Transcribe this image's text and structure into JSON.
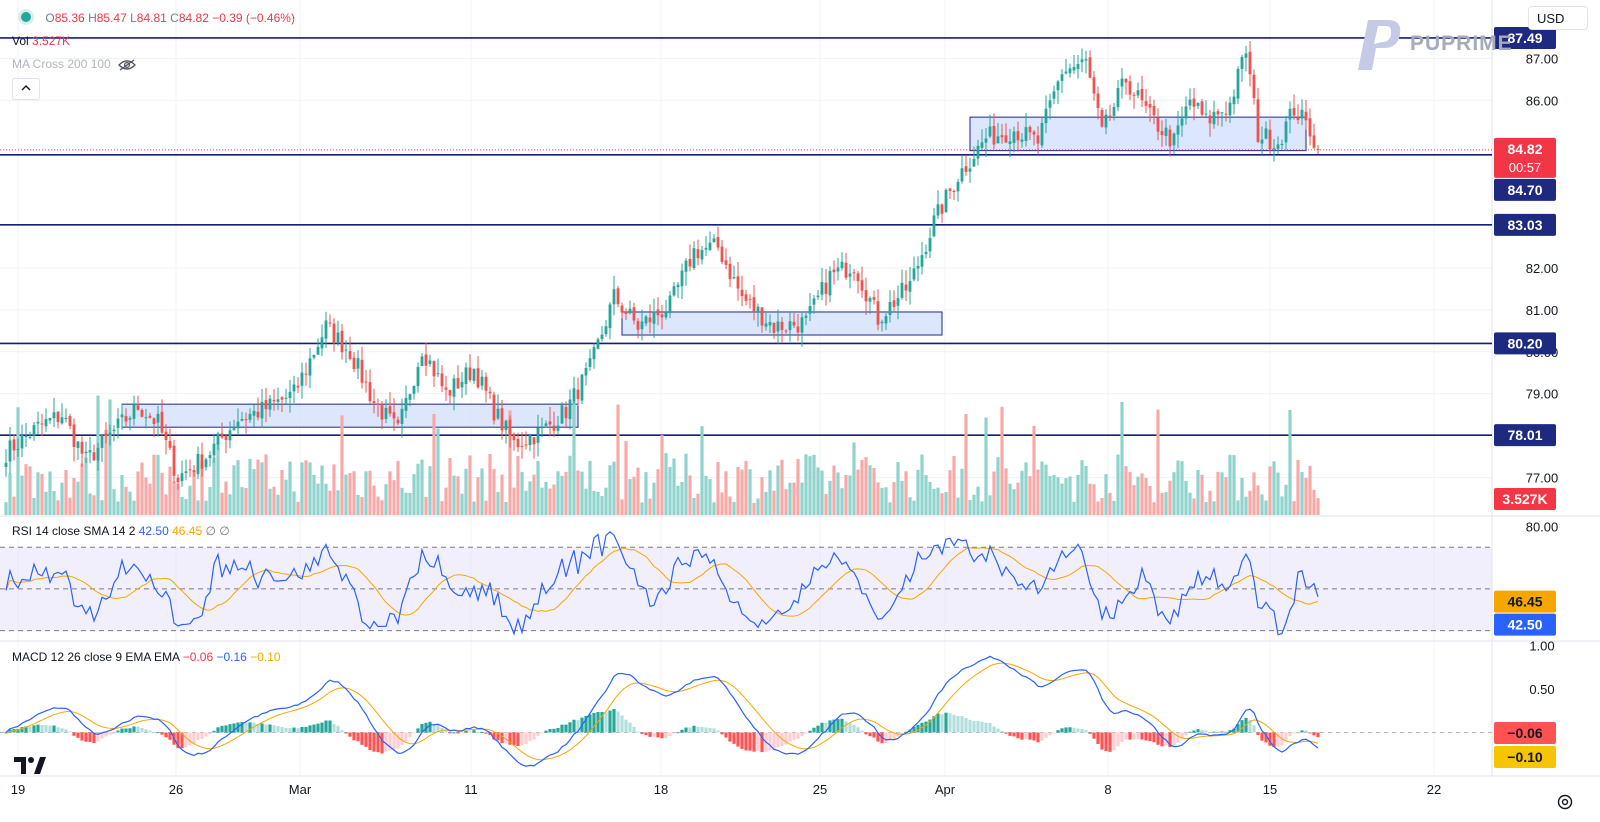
{
  "toolbar": {
    "currency": "USD",
    "collapse_icon": "chevron-up-icon"
  },
  "brand": {
    "name": "PUPRIME",
    "logo_color": "#a6abb9"
  },
  "legend": {
    "status_icon": "market-open-dot-icon",
    "open_label": "O",
    "open": "85.36",
    "high_label": "H",
    "high": "85.47",
    "low_label": "L",
    "low": "84.81",
    "close_label": "C",
    "close": "84.82",
    "change": "−0.39 (−0.46%)",
    "vol_label": "Vol",
    "vol_value": "3.527K",
    "ma_label": "MA Cross 200 100",
    "ma_icon": "eye-off-icon"
  },
  "rsi_legend": {
    "title": "RSI 14 close SMA 14 2",
    "v1": "42.50",
    "v2": "46.45",
    "v3": "∅",
    "v4": "∅"
  },
  "macd_legend": {
    "title": "MACD 12 26 close 9 EMA EMA",
    "v1": "−0.06",
    "v2": "−0.16",
    "v3": "−0.10"
  },
  "colors": {
    "up": "#26a69a",
    "down": "#ef5350",
    "vol_up": "#8fd3cc",
    "vol_down": "#f7a9a8",
    "level_line": "#131d85",
    "zone_fill": "#d6e2fb",
    "zone_border": "#1e2a80",
    "rsi": "#2962ff",
    "rsi_ma": "#f7a600",
    "macd": "#2962ff",
    "signal": "#f7a600",
    "label_bg": "#1e2a80",
    "price_label_bg": "#f23645"
  },
  "chart_data": {
    "type": "candlestick",
    "symbol_currency": "USD",
    "x_ticks": [
      "19",
      "26",
      "Mar",
      "11",
      "18",
      "25",
      "Apr",
      "8",
      "15",
      "22"
    ],
    "y_ticks": [
      "87.00",
      "86.00",
      "82.00",
      "81.00",
      "80.00",
      "79.00",
      "77.00"
    ],
    "price_range": [
      76.2,
      88.3
    ],
    "levels": [
      "87.49",
      "84.70",
      "83.03",
      "80.20",
      "78.01"
    ],
    "level_values": [
      87.49,
      84.7,
      83.03,
      80.2,
      78.01
    ],
    "current_price": "84.82",
    "countdown": "00:57",
    "volume_label": "3.527K",
    "zones": [
      {
        "from_bar": 29,
        "to_bar": 143,
        "low": 78.2,
        "high": 78.75
      },
      {
        "from_bar": 154,
        "to_bar": 234,
        "low": 80.4,
        "high": 80.95
      },
      {
        "from_bar": 241,
        "to_bar": 325,
        "low": 84.8,
        "high": 85.6
      }
    ],
    "rsi_panel": {
      "y_ticks": [
        "80.00"
      ],
      "value_labels": [
        "46.45",
        "42.50"
      ],
      "band": [
        30,
        70
      ],
      "range": [
        25,
        85
      ]
    },
    "macd_panel": {
      "y_ticks": [
        "1.00",
        "0.50"
      ],
      "value_labels": [
        "−0.06",
        "−0.10"
      ],
      "range": [
        -0.5,
        1.05
      ]
    },
    "price_path": [
      [
        0,
        77.6
      ],
      [
        8,
        78.2
      ],
      [
        14,
        78.5
      ],
      [
        20,
        77.4
      ],
      [
        26,
        78.0
      ],
      [
        33,
        78.7
      ],
      [
        38,
        78.3
      ],
      [
        43,
        77.0
      ],
      [
        50,
        77.5
      ],
      [
        58,
        78.4
      ],
      [
        64,
        78.6
      ],
      [
        72,
        79.0
      ],
      [
        80,
        80.6
      ],
      [
        86,
        80.0
      ],
      [
        92,
        78.8
      ],
      [
        98,
        78.1
      ],
      [
        104,
        80.1
      ],
      [
        110,
        79.0
      ],
      [
        117,
        79.6
      ],
      [
        122,
        78.6
      ],
      [
        127,
        77.8
      ],
      [
        134,
        78.1
      ],
      [
        140,
        78.6
      ],
      [
        146,
        79.6
      ],
      [
        152,
        81.3
      ],
      [
        158,
        80.6
      ],
      [
        166,
        81.1
      ],
      [
        172,
        82.4
      ],
      [
        178,
        82.5
      ],
      [
        184,
        81.3
      ],
      [
        192,
        80.6
      ],
      [
        200,
        80.7
      ],
      [
        206,
        81.8
      ],
      [
        212,
        82.1
      ],
      [
        218,
        80.8
      ],
      [
        226,
        81.6
      ],
      [
        232,
        83.1
      ],
      [
        238,
        84.2
      ],
      [
        245,
        85.1
      ],
      [
        252,
        85.3
      ],
      [
        258,
        85.0
      ],
      [
        264,
        86.7
      ],
      [
        270,
        86.9
      ],
      [
        274,
        85.2
      ],
      [
        280,
        86.5
      ],
      [
        286,
        85.6
      ],
      [
        292,
        85.0
      ],
      [
        296,
        86.0
      ],
      [
        300,
        85.5
      ],
      [
        306,
        85.9
      ],
      [
        310,
        87.2
      ],
      [
        313,
        85.2
      ],
      [
        318,
        85.0
      ],
      [
        322,
        85.8
      ],
      [
        326,
        85.3
      ],
      [
        328,
        84.82
      ]
    ]
  }
}
